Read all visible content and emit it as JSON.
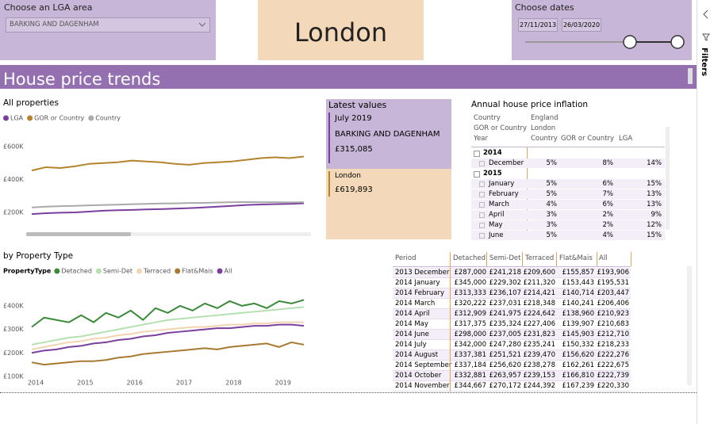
{
  "slicers": {
    "lga": {
      "label": "Choose an LGA area",
      "selected": "BARKING AND DAGENHAM"
    },
    "region": "London",
    "dates": {
      "label": "Choose dates",
      "start": "27/11/2013",
      "end": "26/03/2020"
    }
  },
  "banner": "House price trends",
  "filters_pane": "Filters",
  "latest": {
    "title": "Latest values",
    "date": "July 2019",
    "lga": "BARKING AND DAGENHAM",
    "lga_value": "£315,085",
    "region": "London",
    "region_value": "£619,893"
  },
  "inflation_table": {
    "title": "Annual house price inflation",
    "filters": [
      [
        "Country",
        "England"
      ],
      [
        "GOR or Country",
        "London"
      ]
    ],
    "columns": [
      "Year",
      "Country",
      "GOR or Country",
      "LGA"
    ],
    "groups": [
      {
        "year": "2014",
        "rows": [
          [
            "December",
            "5%",
            "8%",
            "14%"
          ]
        ]
      },
      {
        "year": "2015",
        "rows": [
          [
            "January",
            "5%",
            "6%",
            "15%"
          ],
          [
            "February",
            "5%",
            "7%",
            "13%"
          ],
          [
            "March",
            "4%",
            "6%",
            "13%"
          ],
          [
            "April",
            "3%",
            "2%",
            "9%"
          ],
          [
            "May",
            "3%",
            "2%",
            "12%"
          ],
          [
            "June",
            "5%",
            "4%",
            "15%"
          ]
        ]
      }
    ]
  },
  "type_table": {
    "columns": [
      "Period",
      "Detached",
      "Semi-Det",
      "Terraced",
      "Flat&Mais",
      "All"
    ],
    "rows": [
      [
        "2013 December",
        "£287,000",
        "£241,218",
        "£209,600",
        "£155,857",
        "£193,906"
      ],
      [
        "2014 January",
        "£345,000",
        "£229,302",
        "£211,320",
        "£153,443",
        "£195,531"
      ],
      [
        "2014 February",
        "£313,333",
        "£236,107",
        "£214,421",
        "£140,714",
        "£203,447"
      ],
      [
        "2014 March",
        "£320,222",
        "£237,031",
        "£218,348",
        "£140,241",
        "£206,406"
      ],
      [
        "2014 April",
        "£312,909",
        "£241,975",
        "£224,642",
        "£138,960",
        "£210,923"
      ],
      [
        "2014 May",
        "£317,375",
        "£235,324",
        "£227,406",
        "£139,907",
        "£210,683"
      ],
      [
        "2014 June",
        "£298,000",
        "£237,005",
        "£231,823",
        "£145,903",
        "£212,710"
      ],
      [
        "2014 July",
        "£342,000",
        "£247,280",
        "£235,241",
        "£150,332",
        "£218,233"
      ],
      [
        "2014 August",
        "£337,381",
        "£251,521",
        "£239,470",
        "£156,620",
        "£222,276"
      ],
      [
        "2014 September",
        "£337,184",
        "£256,620",
        "£238,278",
        "£162,261",
        "£222,675"
      ],
      [
        "2014 October",
        "£332,881",
        "£263,957",
        "£239,153",
        "£166,810",
        "£222,739"
      ],
      [
        "2014 November",
        "£344,667",
        "£270,172",
        "£244,392",
        "£167,239",
        "£220,330"
      ]
    ]
  },
  "chart_data": [
    {
      "type": "line",
      "title": "All properties",
      "categories": [
        null,
        null,
        null,
        null,
        null,
        null,
        null,
        null,
        null,
        null,
        null,
        null,
        null,
        null,
        null,
        null,
        null,
        null,
        null,
        null
      ],
      "series": [
        {
          "name": "LGA",
          "color": "#7b3f9e",
          "values": [
            190000,
            195000,
            198000,
            200000,
            205000,
            210000,
            213000,
            215000,
            218000,
            220000,
            223000,
            226000,
            230000,
            235000,
            240000,
            245000,
            248000,
            250000,
            252000,
            255000
          ]
        },
        {
          "name": "GOR or Country",
          "color": "#b5822e",
          "values": [
            455000,
            475000,
            470000,
            480000,
            495000,
            500000,
            505000,
            515000,
            510000,
            505000,
            495000,
            490000,
            500000,
            505000,
            510000,
            520000,
            530000,
            535000,
            530000,
            540000
          ]
        },
        {
          "name": "Country",
          "color": "#aaaaaa",
          "values": [
            230000,
            235000,
            238000,
            240000,
            243000,
            245000,
            247000,
            250000,
            252000,
            254000,
            255000,
            257000,
            258000,
            260000,
            262000,
            263000,
            262000,
            262000,
            261000,
            262000
          ]
        }
      ],
      "ylim": [
        120000,
        670000
      ],
      "yticks": [
        {
          "value": 200000,
          "label": "£200K"
        },
        {
          "value": 400000,
          "label": "£400K"
        },
        {
          "value": 600000,
          "label": "£600K"
        }
      ],
      "grid": false
    },
    {
      "type": "line",
      "title": "by Property Type",
      "legend_title": "PropertyType",
      "categories": [
        "2014",
        null,
        null,
        null,
        "2015",
        null,
        null,
        null,
        "2016",
        null,
        null,
        null,
        "2017",
        null,
        null,
        null,
        "2018",
        null,
        null,
        null,
        "2019",
        null,
        null
      ],
      "series": [
        {
          "name": "Detached",
          "color": "#3a8a3a",
          "values": [
            310000,
            350000,
            340000,
            330000,
            360000,
            330000,
            370000,
            350000,
            380000,
            340000,
            390000,
            370000,
            400000,
            380000,
            410000,
            390000,
            420000,
            400000,
            410000,
            390000,
            420000,
            410000,
            425000
          ]
        },
        {
          "name": "Semi-Det",
          "color": "#b5e0b0",
          "values": [
            235000,
            245000,
            255000,
            265000,
            270000,
            280000,
            290000,
            300000,
            310000,
            320000,
            330000,
            340000,
            345000,
            350000,
            355000,
            360000,
            365000,
            370000,
            375000,
            380000,
            385000,
            390000,
            395000
          ]
        },
        {
          "name": "Terraced",
          "color": "#f2d5b0",
          "values": [
            215000,
            225000,
            235000,
            245000,
            250000,
            260000,
            265000,
            275000,
            280000,
            290000,
            295000,
            300000,
            305000,
            310000,
            310000,
            315000,
            320000,
            320000,
            325000,
            325000,
            330000,
            330000,
            330000
          ]
        },
        {
          "name": "Flat&Mais",
          "color": "#a87a30",
          "values": [
            160000,
            150000,
            155000,
            160000,
            165000,
            165000,
            170000,
            180000,
            185000,
            195000,
            200000,
            205000,
            210000,
            215000,
            220000,
            215000,
            225000,
            230000,
            235000,
            240000,
            225000,
            245000,
            235000
          ]
        },
        {
          "name": "All",
          "color": "#7b3f9e",
          "values": [
            200000,
            210000,
            215000,
            225000,
            230000,
            240000,
            245000,
            255000,
            260000,
            270000,
            275000,
            285000,
            290000,
            295000,
            300000,
            305000,
            305000,
            310000,
            315000,
            315000,
            320000,
            320000,
            315000
          ]
        }
      ],
      "ylim": [
        100000,
        440000
      ],
      "yticks": [
        {
          "value": 100000,
          "label": "£100K"
        },
        {
          "value": 200000,
          "label": "£200K"
        },
        {
          "value": 300000,
          "label": "£300K"
        },
        {
          "value": 400000,
          "label": "£400K"
        }
      ],
      "grid": false
    }
  ]
}
